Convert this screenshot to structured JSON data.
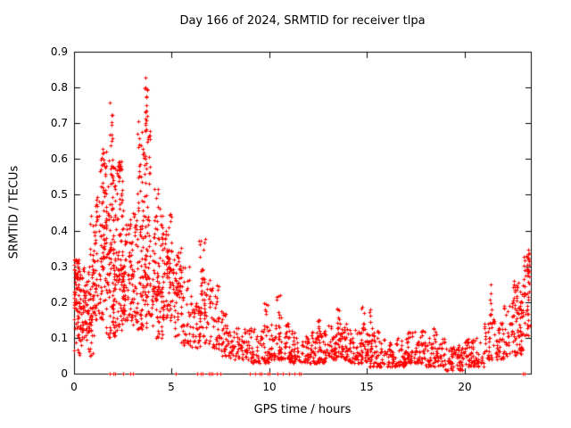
{
  "title": "Day 166 of 2024, SRMTID for receiver tlpa",
  "background_color": "#ffffff",
  "axis_color": "#000000",
  "chart_data": {
    "type": "scatter",
    "title": "Day 166 of 2024, SRMTID for receiver tlpa",
    "xlabel": "GPS time / hours",
    "ylabel": "SRMTID / TECUs",
    "xlim": [
      0,
      23.4
    ],
    "ylim": [
      0,
      0.9
    ],
    "xticks": [
      0,
      5,
      10,
      15,
      20
    ],
    "xtick_labels": [
      "0",
      "5",
      "10",
      "15",
      "20"
    ],
    "yticks": [
      0,
      0.1,
      0.2,
      0.3,
      0.4,
      0.5,
      0.6,
      0.7,
      0.8,
      0.9
    ],
    "ytick_labels": [
      "0",
      "0.1",
      "0.2",
      "0.3",
      "0.4",
      "0.5",
      "0.6",
      "0.7",
      "0.8",
      "0.9"
    ],
    "grid": false,
    "legend": "none",
    "marker": "plus",
    "marker_size_px": 5,
    "marker_color": "#ff0000",
    "series": [
      {
        "name": "SRMTID",
        "note": "dense scatter; represented as density envelope bins [x_start, x_end, y_min, y_max, n_points, skew] estimated from the figure",
        "envelope_bins": [
          [
            0.0,
            0.3,
            0.18,
            0.32,
            60,
            1
          ],
          [
            0.0,
            0.5,
            0.05,
            0.2,
            40,
            1
          ],
          [
            0.3,
            0.8,
            0.1,
            0.3,
            50,
            1
          ],
          [
            0.5,
            1.0,
            0.05,
            0.25,
            40,
            1
          ],
          [
            0.8,
            1.2,
            0.15,
            0.45,
            40,
            1
          ],
          [
            1.0,
            1.5,
            0.15,
            0.5,
            60,
            1.3
          ],
          [
            1.3,
            1.7,
            0.3,
            0.63,
            40,
            1
          ],
          [
            1.5,
            2.0,
            0.2,
            0.6,
            60,
            1
          ],
          [
            1.8,
            2.0,
            0.5,
            0.77,
            15,
            1
          ],
          [
            1.6,
            2.1,
            0.1,
            0.35,
            40,
            1
          ],
          [
            2.0,
            2.5,
            0.25,
            0.6,
            80,
            1.2
          ],
          [
            2.0,
            2.6,
            0.1,
            0.3,
            60,
            1
          ],
          [
            2.5,
            3.0,
            0.15,
            0.45,
            70,
            1.2
          ],
          [
            2.2,
            2.4,
            0.55,
            0.6,
            10,
            1
          ],
          [
            3.0,
            3.5,
            0.12,
            0.45,
            70,
            1.2
          ],
          [
            3.2,
            3.5,
            0.45,
            0.72,
            20,
            1
          ],
          [
            3.5,
            3.9,
            0.3,
            0.68,
            50,
            1
          ],
          [
            3.55,
            3.75,
            0.68,
            0.83,
            18,
            1
          ],
          [
            3.5,
            4.0,
            0.12,
            0.35,
            50,
            1
          ],
          [
            4.0,
            4.5,
            0.2,
            0.52,
            60,
            1.3
          ],
          [
            4.0,
            4.6,
            0.1,
            0.25,
            40,
            1
          ],
          [
            4.5,
            5.0,
            0.15,
            0.45,
            60,
            1.3
          ],
          [
            4.6,
            4.9,
            0.28,
            0.33,
            20,
            1
          ],
          [
            5.0,
            5.5,
            0.22,
            0.36,
            40,
            1
          ],
          [
            5.0,
            5.6,
            0.1,
            0.25,
            30,
            1
          ],
          [
            5.5,
            6.0,
            0.08,
            0.3,
            40,
            1.3
          ],
          [
            6.0,
            6.5,
            0.07,
            0.2,
            40,
            1.3
          ],
          [
            6.4,
            6.7,
            0.15,
            0.38,
            25,
            1
          ],
          [
            6.5,
            7.0,
            0.08,
            0.28,
            35,
            1.3
          ],
          [
            7.0,
            7.5,
            0.07,
            0.25,
            40,
            1.5
          ],
          [
            7.5,
            8.0,
            0.05,
            0.18,
            40,
            1.5
          ],
          [
            8.0,
            9.0,
            0.04,
            0.13,
            70,
            1.5
          ],
          [
            9.0,
            10.0,
            0.03,
            0.13,
            70,
            1.5
          ],
          [
            9.7,
            9.9,
            0.13,
            0.23,
            8,
            1
          ],
          [
            10.0,
            11.0,
            0.04,
            0.14,
            80,
            1.5
          ],
          [
            10.3,
            10.6,
            0.14,
            0.22,
            8,
            1
          ],
          [
            11.0,
            12.0,
            0.03,
            0.12,
            80,
            1.5
          ],
          [
            12.0,
            13.0,
            0.03,
            0.12,
            90,
            1.5
          ],
          [
            12.4,
            12.6,
            0.12,
            0.16,
            6,
            1
          ],
          [
            13.0,
            14.0,
            0.04,
            0.14,
            90,
            1.5
          ],
          [
            13.4,
            13.6,
            0.14,
            0.19,
            6,
            1
          ],
          [
            14.0,
            15.0,
            0.03,
            0.13,
            80,
            1.5
          ],
          [
            14.7,
            14.9,
            0.13,
            0.2,
            6,
            1
          ],
          [
            15.0,
            16.0,
            0.02,
            0.12,
            80,
            1.5
          ],
          [
            15.1,
            15.3,
            0.12,
            0.18,
            6,
            1
          ],
          [
            16.0,
            17.0,
            0.02,
            0.1,
            80,
            1.5
          ],
          [
            17.0,
            18.0,
            0.03,
            0.12,
            80,
            1.5
          ],
          [
            18.0,
            19.0,
            0.02,
            0.1,
            70,
            1.5
          ],
          [
            18.4,
            18.6,
            0.1,
            0.14,
            5,
            1
          ],
          [
            19.0,
            20.0,
            0.01,
            0.08,
            70,
            1.5
          ],
          [
            20.0,
            21.0,
            0.02,
            0.1,
            70,
            1.5
          ],
          [
            21.0,
            22.0,
            0.04,
            0.16,
            70,
            1.4
          ],
          [
            21.2,
            21.4,
            0.16,
            0.26,
            8,
            1
          ],
          [
            22.0,
            23.0,
            0.05,
            0.22,
            80,
            1.3
          ],
          [
            22.5,
            23.0,
            0.1,
            0.27,
            30,
            1
          ],
          [
            23.0,
            23.35,
            0.1,
            0.33,
            50,
            1
          ],
          [
            23.2,
            23.3,
            0.3,
            0.36,
            8,
            1
          ]
        ],
        "zero_points_x": [
          1.85,
          2.0,
          2.1,
          2.5,
          2.9,
          3.0,
          5.2,
          6.3,
          6.5,
          6.6,
          6.9,
          7.0,
          7.1,
          7.3,
          7.5,
          9.0,
          9.3,
          9.5,
          9.6,
          9.9,
          10.0,
          10.4,
          10.7,
          11.0,
          11.3,
          11.5,
          11.6,
          23.0,
          23.1
        ]
      }
    ]
  }
}
